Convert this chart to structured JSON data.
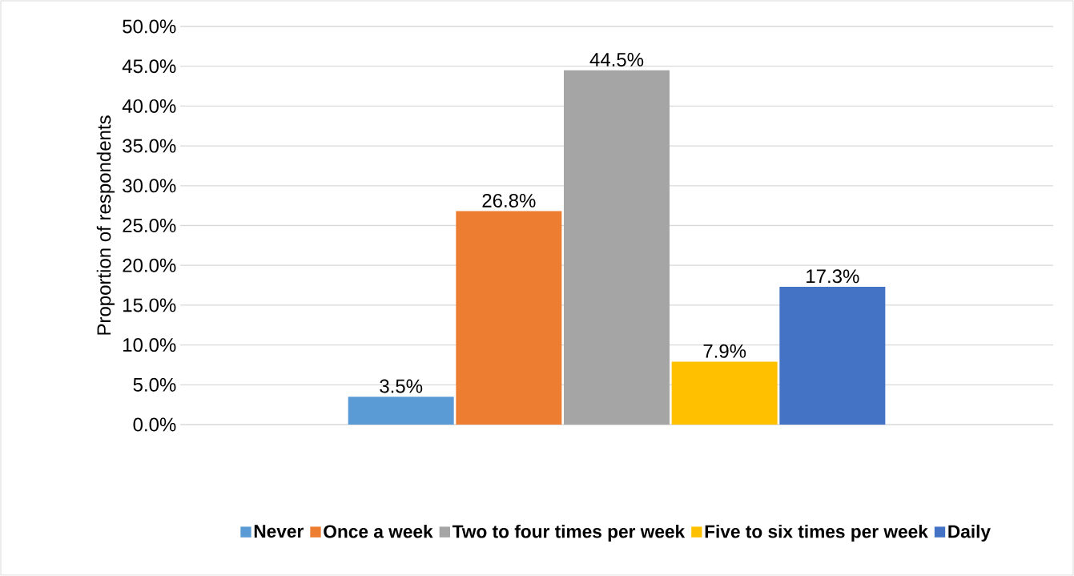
{
  "chart_data": {
    "type": "bar",
    "ylabel": "Proportion of respondents",
    "categories": [
      null
    ],
    "series": [
      {
        "name": "Never",
        "color": "#5b9bd5",
        "values": [
          3.5
        ],
        "value_labels": [
          "3.5%"
        ]
      },
      {
        "name": "Once a week",
        "color": "#ed7d31",
        "values": [
          26.8
        ],
        "value_labels": [
          "26.8%"
        ]
      },
      {
        "name": "Two to four times per week",
        "color": "#a5a5a5",
        "values": [
          44.5
        ],
        "value_labels": [
          "44.5%"
        ]
      },
      {
        "name": "Five to six times per week",
        "color": "#ffc000",
        "values": [
          7.9
        ],
        "value_labels": [
          "7.9%"
        ]
      },
      {
        "name": "Daily",
        "color": "#4472c4",
        "values": [
          17.3
        ],
        "value_labels": [
          "17.3%"
        ]
      }
    ],
    "ylim": [
      0,
      50
    ],
    "yticks": [
      {
        "value": 0,
        "label": "0.0%"
      },
      {
        "value": 5,
        "label": "5.0%"
      },
      {
        "value": 10,
        "label": "10.0%"
      },
      {
        "value": 15,
        "label": "15.0%"
      },
      {
        "value": 20,
        "label": "20.0%"
      },
      {
        "value": 25,
        "label": "25.0%"
      },
      {
        "value": 30,
        "label": "30.0%"
      },
      {
        "value": 35,
        "label": "35.0%"
      },
      {
        "value": 40,
        "label": "40.0%"
      },
      {
        "value": 45,
        "label": "45.0%"
      },
      {
        "value": 50,
        "label": "50.0%"
      }
    ],
    "grid": "y",
    "legend": "bottom"
  }
}
